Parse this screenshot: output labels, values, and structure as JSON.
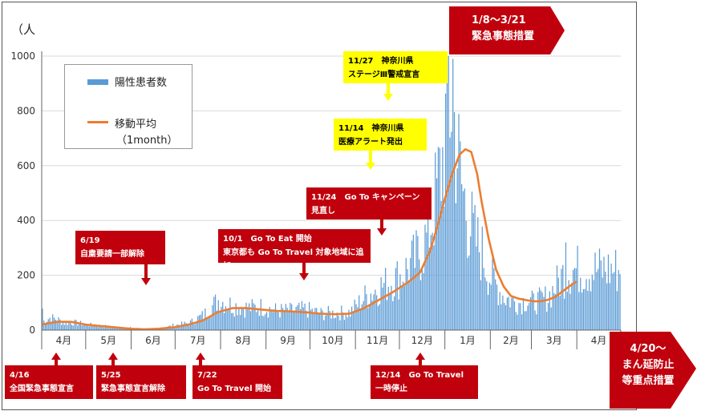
{
  "chart_data": {
    "type": "bar",
    "unit_label": "（人",
    "ylim": [
      0,
      1000
    ],
    "yticks": [
      0,
      200,
      400,
      600,
      800,
      1000
    ],
    "month_labels": [
      "4月",
      "5月",
      "6月",
      "7月",
      "8月",
      "9月",
      "10月",
      "11月",
      "12月",
      "1月",
      "2月",
      "3月",
      "4月"
    ],
    "days_per_month": [
      30,
      31,
      30,
      31,
      31,
      30,
      31,
      30,
      31,
      31,
      28,
      31,
      30
    ],
    "legend": {
      "bar": "陽性患者数",
      "line": "移動平均",
      "line_sub": "（1month）"
    },
    "colors": {
      "bar": "#5b9bd5",
      "line": "#ed7d31",
      "red": "#c0000c",
      "yellow": "#ffff00"
    },
    "series": [
      {
        "name": "陽性患者数",
        "kind": "bar",
        "anchors": [
          [
            0,
            30
          ],
          [
            5,
            45
          ],
          [
            10,
            40
          ],
          [
            15,
            25
          ],
          [
            20,
            28
          ],
          [
            25,
            25
          ],
          [
            30,
            20
          ],
          [
            40,
            15
          ],
          [
            50,
            10
          ],
          [
            60,
            8
          ],
          [
            70,
            5
          ],
          [
            80,
            5
          ],
          [
            90,
            18
          ],
          [
            100,
            25
          ],
          [
            110,
            55
          ],
          [
            120,
            110
          ],
          [
            130,
            90
          ],
          [
            140,
            80
          ],
          [
            150,
            85
          ],
          [
            160,
            70
          ],
          [
            170,
            70
          ],
          [
            180,
            75
          ],
          [
            190,
            60
          ],
          [
            200,
            62
          ],
          [
            210,
            65
          ],
          [
            220,
            120
          ],
          [
            228,
            150
          ],
          [
            235,
            170
          ],
          [
            245,
            200
          ],
          [
            255,
            260
          ],
          [
            262,
            330
          ],
          [
            268,
            470
          ],
          [
            273,
            620
          ],
          [
            276,
            780
          ],
          [
            279,
            850
          ],
          [
            282,
            700
          ],
          [
            286,
            520
          ],
          [
            290,
            420
          ],
          [
            295,
            330
          ],
          [
            300,
            280
          ],
          [
            305,
            200
          ],
          [
            310,
            160
          ],
          [
            315,
            120
          ],
          [
            320,
            110
          ],
          [
            325,
            100
          ],
          [
            330,
            110
          ],
          [
            335,
            100
          ],
          [
            340,
            110
          ],
          [
            345,
            120
          ],
          [
            350,
            160
          ],
          [
            355,
            200
          ],
          [
            360,
            220
          ],
          [
            365,
            220
          ]
        ]
      },
      {
        "name": "移動平均",
        "kind": "line",
        "points": [
          [
            0,
            20
          ],
          [
            10,
            30
          ],
          [
            20,
            30
          ],
          [
            30,
            20
          ],
          [
            40,
            15
          ],
          [
            50,
            10
          ],
          [
            60,
            5
          ],
          [
            70,
            3
          ],
          [
            80,
            5
          ],
          [
            90,
            10
          ],
          [
            100,
            20
          ],
          [
            110,
            35
          ],
          [
            120,
            65
          ],
          [
            130,
            80
          ],
          [
            140,
            80
          ],
          [
            150,
            75
          ],
          [
            160,
            70
          ],
          [
            170,
            68
          ],
          [
            180,
            65
          ],
          [
            190,
            60
          ],
          [
            200,
            58
          ],
          [
            210,
            60
          ],
          [
            220,
            80
          ],
          [
            230,
            110
          ],
          [
            240,
            140
          ],
          [
            250,
            175
          ],
          [
            258,
            210
          ],
          [
            265,
            290
          ],
          [
            270,
            380
          ],
          [
            275,
            480
          ],
          [
            280,
            570
          ],
          [
            285,
            640
          ],
          [
            289,
            660
          ],
          [
            293,
            650
          ],
          [
            297,
            570
          ],
          [
            300,
            470
          ],
          [
            305,
            330
          ],
          [
            310,
            220
          ],
          [
            315,
            160
          ],
          [
            320,
            125
          ],
          [
            325,
            115
          ],
          [
            330,
            110
          ],
          [
            335,
            105
          ],
          [
            340,
            105
          ],
          [
            345,
            110
          ],
          [
            350,
            120
          ],
          [
            355,
            140
          ],
          [
            360,
            160
          ],
          [
            365,
            178
          ]
        ]
      }
    ]
  },
  "annotations": {
    "a_0416": [
      "4/16",
      "全国緊急事態宣言"
    ],
    "a_0525": [
      "5/25",
      "緊急事態宣言解除"
    ],
    "a_0619": [
      "6/19",
      "自粛要請一部解除"
    ],
    "a_0722": [
      "7/22",
      "Go To Travel 開始"
    ],
    "a_1001": [
      "10/1　Go To Eat 開始",
      "東京都も Go To Travel 対象地域に追加"
    ],
    "a_1124": [
      "11/24　Go To キャンペーン",
      "見直し"
    ],
    "a_1114": [
      "11/14　神奈川県",
      "医療アラート発出"
    ],
    "a_1127": [
      "11/27　神奈川県",
      "ステージⅢ警戒宣言"
    ],
    "a_1214": [
      "12/14　Go To Travel",
      "一時停止"
    ],
    "a_0108": [
      "1/8～3/21",
      "緊急事態措置"
    ],
    "a_0420": [
      "4/20～",
      "まん延防止",
      "等重点措置"
    ]
  }
}
